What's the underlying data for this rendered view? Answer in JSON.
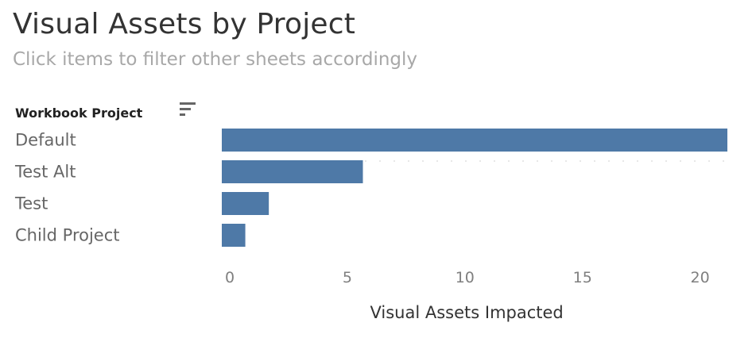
{
  "header": {
    "title": "Visual Assets by Project",
    "subtitle": "Click items to filter other sheets accordingly"
  },
  "dimension_header": "Workbook Project",
  "sort_icon": "sort-descending-icon",
  "colors": {
    "bar": "#4e79a7",
    "grid": "#e8e8e8"
  },
  "chart_data": {
    "type": "bar",
    "orientation": "horizontal",
    "categories": [
      "Default",
      "Test Alt",
      "Test",
      "Child Project"
    ],
    "values": [
      21.5,
      6,
      2,
      1
    ],
    "xlabel": "Visual Assets Impacted",
    "ylabel": "Workbook Project",
    "xlim": [
      0,
      21.5
    ],
    "xticks": [
      0,
      5,
      10,
      15,
      20
    ],
    "grid": "dotted reference line"
  }
}
